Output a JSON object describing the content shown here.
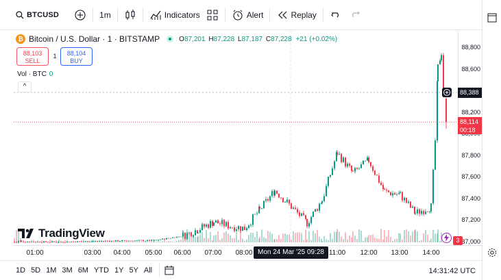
{
  "topbar": {
    "symbol": "BTCUSD",
    "interval": "1m",
    "indicators_label": "Indicators",
    "alert_label": "Alert",
    "replay_label": "Replay"
  },
  "legend": {
    "coin_glyph": "₿",
    "title": "Bitcoin / U.S. Dollar · 1 · BITSTAMP",
    "o_key": "O",
    "o_val": "87,201",
    "h_key": "H",
    "h_val": "87,228",
    "l_key": "L",
    "l_val": "87,187",
    "c_key": "C",
    "c_val": "87,228",
    "change": "+21 (+0.02%)"
  },
  "trade": {
    "sell_price": "88,103",
    "sell_label": "SELL",
    "spread": "1",
    "buy_price": "88,104",
    "buy_label": "BUY"
  },
  "volume": {
    "label": "Vol · BTC",
    "value": "0"
  },
  "collapse_glyph": "^",
  "logo_text": "TradingView",
  "price_axis": {
    "labels": [
      "88,800",
      "88,600",
      "88,400",
      "88,200",
      "88,000",
      "87,800",
      "87,600",
      "87,400",
      "87,200",
      "87,000"
    ],
    "crosshair_price": "88,388",
    "last_price": "88,114",
    "countdown": "00:18",
    "alert_count": "3"
  },
  "time_axis": {
    "labels": [
      "01:00",
      "03:00",
      "04:00",
      "05:00",
      "06:00",
      "07:00",
      "08:00",
      "11:00",
      "12:00",
      "13:00",
      "14:00"
    ],
    "cursor_label": "Mon 24 Mar '25   09:28"
  },
  "bottombar": {
    "ranges": [
      "1D",
      "5D",
      "1M",
      "3M",
      "6M",
      "YTD",
      "1Y",
      "5Y",
      "All"
    ],
    "clock": "14:31:42 UTC"
  },
  "colors": {
    "up": "#089981",
    "down": "#f23645",
    "accent": "#2962ff",
    "text": "#131722"
  },
  "chart_data": {
    "type": "line",
    "x": [
      "00:36",
      "01:00",
      "02:00",
      "03:00",
      "04:00",
      "05:00",
      "06:00",
      "06:30",
      "07:00",
      "07:30",
      "08:00",
      "08:30",
      "09:00",
      "09:28",
      "10:00",
      "10:30",
      "11:00",
      "11:30",
      "12:00",
      "12:30",
      "13:00",
      "13:30",
      "14:00",
      "14:15",
      "14:20",
      "14:25",
      "14:31"
    ],
    "y": [
      87000,
      87005,
      87002,
      87010,
      87015,
      87018,
      87060,
      87120,
      87190,
      87150,
      87130,
      87300,
      87480,
      87330,
      87180,
      87390,
      87830,
      87640,
      87760,
      87470,
      87440,
      87270,
      87330,
      87940,
      88620,
      88760,
      88114
    ],
    "ylim": [
      87000,
      88800
    ],
    "ylabel": "",
    "xlabel": "",
    "title": ""
  }
}
